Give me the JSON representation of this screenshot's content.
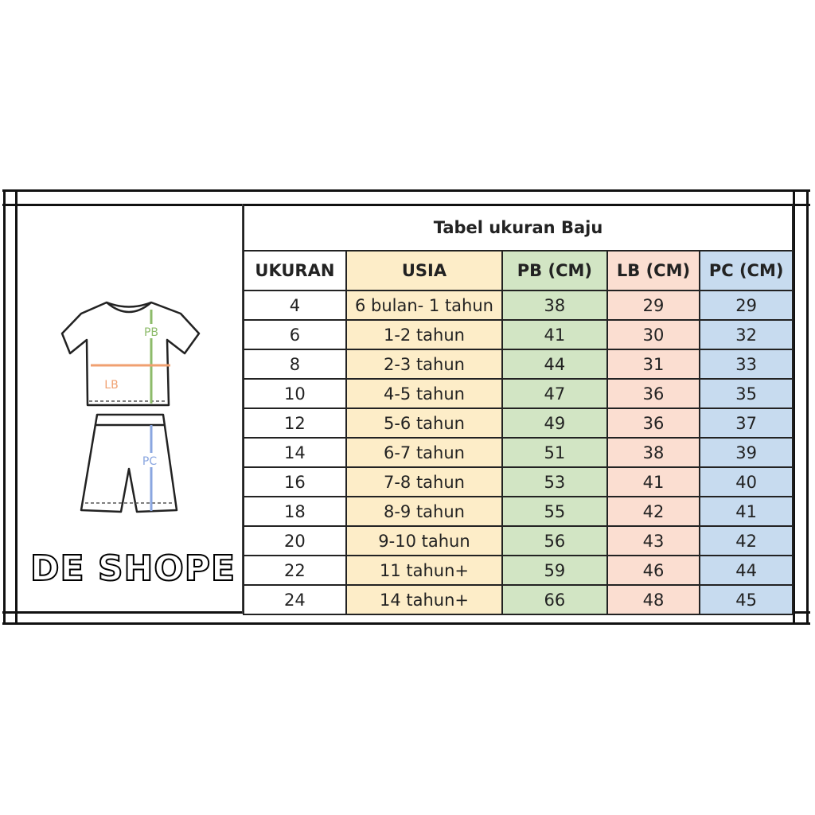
{
  "brand": "DE SHOPE",
  "diagram": {
    "labels": {
      "pb": "PB",
      "lb": "LB",
      "pc": "PC"
    },
    "colors": {
      "pb": "#8dbb6a",
      "lb": "#f0a070",
      "pc": "#8aa6e0"
    }
  },
  "table": {
    "title": "Tabel ukuran Baju",
    "headers": [
      "UKURAN",
      "USIA",
      "PB (CM)",
      "LB (CM)",
      "PC (CM)"
    ],
    "column_colors": [
      "#ffffff",
      "#fdedc8",
      "#d2e5c4",
      "#fbded1",
      "#c7dbef"
    ],
    "rows": [
      [
        "4",
        "6 bulan- 1 tahun",
        "38",
        "29",
        "29"
      ],
      [
        "6",
        "1-2 tahun",
        "41",
        "30",
        "32"
      ],
      [
        "8",
        "2-3 tahun",
        "44",
        "31",
        "33"
      ],
      [
        "10",
        "4-5 tahun",
        "47",
        "36",
        "35"
      ],
      [
        "12",
        "5-6 tahun",
        "49",
        "36",
        "37"
      ],
      [
        "14",
        "6-7 tahun",
        "51",
        "38",
        "39"
      ],
      [
        "16",
        "7-8 tahun",
        "53",
        "41",
        "40"
      ],
      [
        "18",
        "8-9 tahun",
        "55",
        "42",
        "41"
      ],
      [
        "20",
        "9-10 tahun",
        "56",
        "43",
        "42"
      ],
      [
        "22",
        "11 tahun+",
        "59",
        "46",
        "44"
      ],
      [
        "24",
        "14 tahun+",
        "66",
        "48",
        "45"
      ]
    ]
  }
}
